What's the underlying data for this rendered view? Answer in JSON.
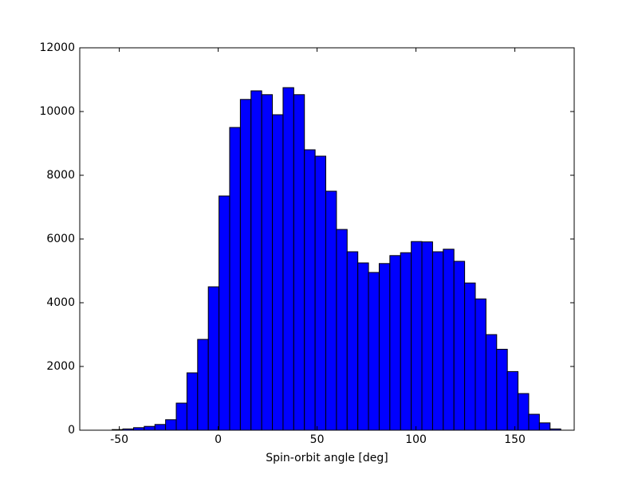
{
  "chart_data": {
    "type": "histogram",
    "xlabel": "Spin-orbit angle [deg]",
    "bins": [
      -53.6,
      -48.2,
      -42.8,
      -37.4,
      -32.0,
      -26.6,
      -21.2,
      -15.8,
      -10.4,
      -5.0,
      0.4,
      5.8,
      11.2,
      16.6,
      22.0,
      27.4,
      32.8,
      38.2,
      43.6,
      49.0,
      54.4,
      59.8,
      65.2,
      70.6,
      76.0,
      81.4,
      86.8,
      92.2,
      97.6,
      103.0,
      108.4,
      113.8,
      119.2,
      124.6,
      130.0,
      135.4,
      140.8,
      146.2,
      151.6,
      157.0,
      162.4,
      167.8,
      173.2
    ],
    "values": [
      20,
      40,
      80,
      120,
      180,
      330,
      850,
      1800,
      2850,
      4500,
      7350,
      9500,
      10380,
      10650,
      10530,
      9900,
      10750,
      10530,
      8800,
      8600,
      7500,
      6300,
      5600,
      5250,
      4950,
      5230,
      5480,
      5570,
      5920,
      5910,
      5600,
      5680,
      5300,
      4620,
      4120,
      3000,
      2540,
      1840,
      1150,
      500,
      230,
      40
    ],
    "color": "#0000ff",
    "edgecolor": "#000000",
    "xlim": [
      -70,
      180
    ],
    "xticks": [
      -50,
      0,
      50,
      100,
      150
    ],
    "ylim": [
      0,
      12000
    ],
    "yticks": [
      0,
      2000,
      4000,
      6000,
      8000,
      10000,
      12000
    ],
    "grid": false
  }
}
